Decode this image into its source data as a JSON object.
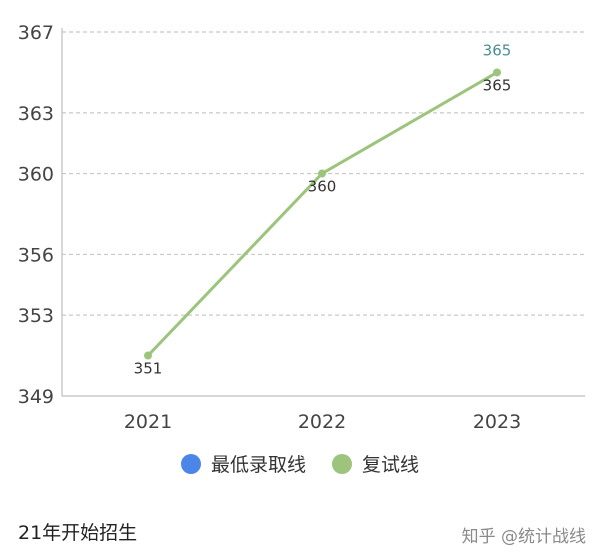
{
  "chart_data": {
    "type": "line",
    "categories": [
      "2021",
      "2022",
      "2023"
    ],
    "y_ticks": [
      "349",
      "353",
      "356",
      "360",
      "363",
      "367"
    ],
    "ylim": [
      349,
      367
    ],
    "grid": true,
    "legend_position": "bottom",
    "series": [
      {
        "name": "最低录取线",
        "color": "#4a86e8",
        "values": [
          null,
          null,
          365
        ],
        "labels": [
          "",
          "",
          "365"
        ]
      },
      {
        "name": "复试线",
        "color": "#9dc47c",
        "values": [
          351,
          360,
          365
        ],
        "labels": [
          "351",
          "360",
          "365"
        ]
      }
    ]
  },
  "caption": "21年开始招生",
  "watermark": "知乎 @统计战线"
}
